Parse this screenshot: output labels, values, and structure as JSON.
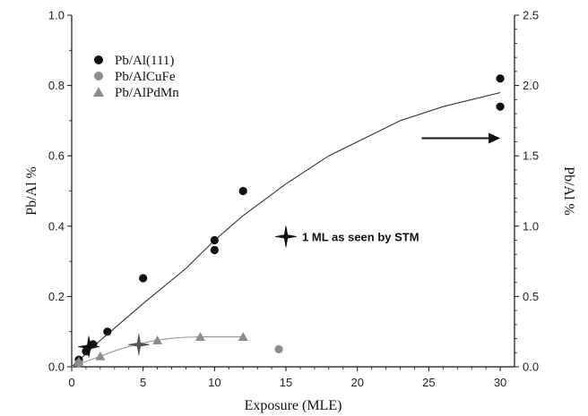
{
  "chart_data": {
    "type": "scatter",
    "xlabel": "Exposure (MLE)",
    "ylabel": "Pb/Al %",
    "y2label": "Pb/Al %",
    "xlim": [
      0,
      31
    ],
    "ylim": [
      0,
      1.0
    ],
    "y2lim": [
      0,
      2.5
    ],
    "x_ticks": [
      0,
      5,
      10,
      15,
      20,
      25,
      30
    ],
    "y_ticks": [
      0.0,
      0.2,
      0.4,
      0.6,
      0.8,
      1.0
    ],
    "y_tick_labels": [
      "0.0",
      "0.2",
      "0.4",
      "0.6",
      "0.8",
      "1.0"
    ],
    "y2_ticks": [
      0.0,
      0.5,
      1.0,
      1.5,
      2.0,
      2.5
    ],
    "y2_tick_labels": [
      "0.0",
      "0.5",
      "1.0",
      "1.5",
      "2.0",
      "2.5"
    ],
    "grid": false,
    "legend_position": "top-left",
    "series": [
      {
        "name": "Pb/Al(111)",
        "marker": "circle",
        "color": "#111111",
        "axis": "right",
        "points": [
          [
            0.5,
            0.05
          ],
          [
            1.0,
            0.11
          ],
          [
            1.5,
            0.16
          ],
          [
            2.5,
            0.25
          ],
          [
            5.0,
            0.63
          ],
          [
            10.0,
            0.83
          ],
          [
            10.0,
            0.9
          ],
          [
            12.0,
            1.25
          ],
          [
            30.0,
            1.85
          ],
          [
            30.0,
            2.05
          ]
        ]
      },
      {
        "name": "Pb/AlCuFe",
        "marker": "circle",
        "color": "#8c8c8c",
        "axis": "left",
        "points": [
          [
            0.5,
            0.01
          ],
          [
            14.5,
            0.05
          ]
        ]
      },
      {
        "name": "Pb/AlPdMn",
        "marker": "triangle",
        "color": "#8c8c8c",
        "axis": "left",
        "points": [
          [
            0.5,
            0.015
          ],
          [
            2.0,
            0.03
          ],
          [
            6.0,
            0.075
          ],
          [
            9.0,
            0.085
          ],
          [
            12.0,
            0.085
          ]
        ]
      }
    ],
    "fits": [
      {
        "series": "Pb/Al(111)",
        "axis": "left",
        "color": "#333333",
        "points": [
          [
            0,
            0.0
          ],
          [
            2,
            0.075
          ],
          [
            5,
            0.18
          ],
          [
            8,
            0.28
          ],
          [
            10,
            0.36
          ],
          [
            12,
            0.43
          ],
          [
            15,
            0.52
          ],
          [
            18,
            0.6
          ],
          [
            20,
            0.64
          ],
          [
            23,
            0.7
          ],
          [
            26,
            0.74
          ],
          [
            28,
            0.76
          ],
          [
            30,
            0.78
          ]
        ]
      },
      {
        "series": "Pb/AlPdMn",
        "axis": "left",
        "color": "#999999",
        "points": [
          [
            0,
            0.0
          ],
          [
            1,
            0.015
          ],
          [
            2,
            0.03
          ],
          [
            3,
            0.045
          ],
          [
            4,
            0.058
          ],
          [
            5,
            0.068
          ],
          [
            6,
            0.076
          ],
          [
            7,
            0.081
          ],
          [
            8,
            0.084
          ],
          [
            9,
            0.085
          ],
          [
            10,
            0.085
          ],
          [
            12,
            0.085
          ]
        ]
      }
    ],
    "star_markers": [
      {
        "x": 1.2,
        "y": 0.057,
        "axis": "left",
        "color": "#111111"
      },
      {
        "x": 4.7,
        "y": 0.063,
        "axis": "left",
        "color": "#555555"
      }
    ],
    "annotation": {
      "text": "1 ML as seen by STM",
      "x": 15,
      "y": 0.34,
      "axis": "left"
    },
    "arrow": {
      "x_from": 24.5,
      "x_to": 30.0,
      "y": 0.65,
      "axis": "left",
      "direction": "right"
    }
  }
}
